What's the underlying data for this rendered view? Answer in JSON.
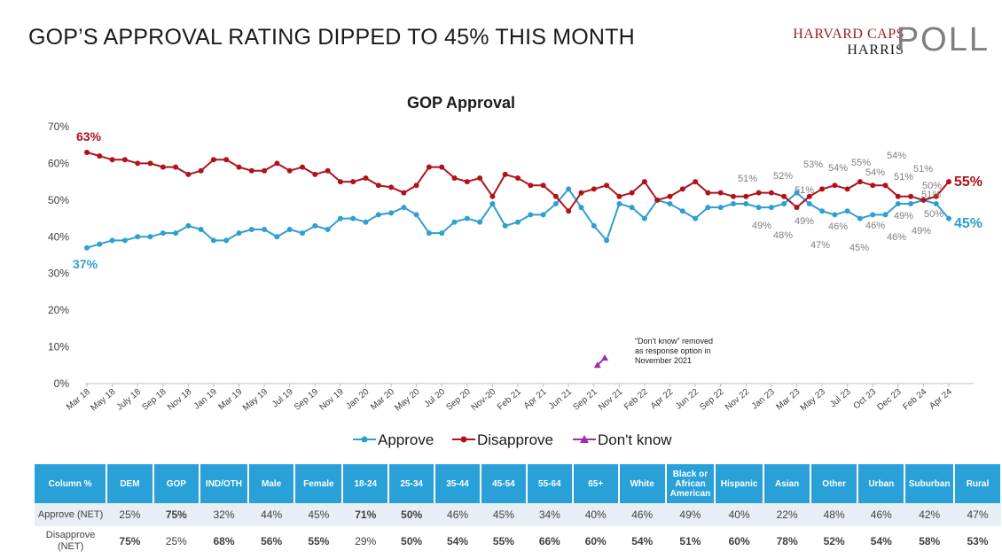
{
  "headline": "GOP’S APPROVAL RATING DIPPED TO 45% THIS MONTH",
  "logo": {
    "top": "HARVARD CAPS",
    "middle": "HARRIS",
    "poll": "POLL"
  },
  "chart_data": {
    "type": "line",
    "title": "GOP Approval",
    "ylim": [
      0,
      70
    ],
    "y_ticks": [
      "0%",
      "10%",
      "20%",
      "30%",
      "40%",
      "50%",
      "60%",
      "70%"
    ],
    "x_tick_labels": [
      "Mar 18",
      "May 18",
      "July 18",
      "Sep 18",
      "Nov 18",
      "Jan 19",
      "Mar 19",
      "May 19",
      "Jul 19",
      "Sep 19",
      "Nov 19",
      "Jan 20",
      "Mar 20",
      "May 20",
      "Jul 20",
      "Sep 20",
      "Nov-20",
      "Feb 21",
      "Apr 21",
      "Jun 21",
      "Sep 21",
      "Nov 21",
      "Feb 22",
      "Apr 22",
      "Jun 22",
      "Sep 22",
      "Nov 22",
      "Jan 23",
      "Mar 23",
      "May 23",
      "Jul 23",
      "Oct 23",
      "Dec 23",
      "Feb 24",
      "Apr 24"
    ],
    "grid": false,
    "legend_position": "bottom",
    "colors": {
      "approve": "#2e9fd1",
      "disapprove": "#b0121b",
      "dontknow": "#9b2fa8"
    },
    "series": [
      {
        "name": "Approve",
        "values": [
          37,
          38,
          39,
          39,
          40,
          40,
          41,
          41,
          43,
          42,
          39,
          39,
          41,
          42,
          42,
          40,
          42,
          41,
          43,
          42,
          45,
          45,
          44,
          46,
          46.5,
          48,
          46,
          41,
          41,
          44,
          45,
          44,
          49,
          43,
          44,
          46,
          46,
          49,
          53,
          48,
          43,
          39,
          49,
          48,
          45,
          50,
          49,
          47,
          45,
          48,
          48,
          49,
          49,
          48,
          48,
          49,
          52,
          49,
          47,
          46,
          47,
          45,
          46,
          46,
          49,
          49,
          50,
          49,
          45
        ]
      },
      {
        "name": "Disapprove",
        "values": [
          63,
          62,
          61,
          61,
          60,
          60,
          59,
          59,
          57,
          58,
          61,
          61,
          59,
          58,
          58,
          60,
          58,
          59,
          57,
          58,
          55,
          55,
          56,
          54,
          53.5,
          52,
          54,
          59,
          59,
          56,
          55,
          56,
          51,
          57,
          56,
          54,
          54,
          51,
          47,
          52,
          53,
          54,
          51,
          52,
          55,
          50,
          51,
          53,
          55,
          52,
          52,
          51,
          51,
          52,
          52,
          51,
          48,
          51,
          53,
          54,
          53,
          55,
          54,
          54,
          51,
          51,
          50,
          51,
          55
        ]
      },
      {
        "name": "Don't know",
        "values": [
          5,
          7
        ]
      }
    ],
    "callouts": {
      "approve_first": "37%",
      "disapprove_first": "63%",
      "approve_last": "45%",
      "disapprove_last": "55%",
      "recent_disapprove": [
        "51%",
        "52%",
        "51%",
        "53%",
        "54%",
        "55%",
        "54%",
        "54%",
        "51%",
        "51%",
        "50%",
        "51%"
      ],
      "recent_approve": [
        "49%",
        "48%",
        "49%",
        "47%",
        "46%",
        "45%",
        "46%",
        "46%",
        "49%",
        "49%",
        "50%"
      ]
    },
    "annotation": [
      "“Don’t know” removed",
      "as response option in",
      "November 2021"
    ]
  },
  "table": {
    "headers": [
      "Column %",
      "DEM",
      "GOP",
      "IND/OTH",
      "Male",
      "Female",
      "18-24",
      "25-34",
      "35-44",
      "45-54",
      "55-64",
      "65+",
      "White",
      "Black or African American",
      "Hispanic",
      "Asian",
      "Other",
      "Urban",
      "Suburban",
      "Rural"
    ],
    "rows": [
      {
        "label": "Approve (NET)",
        "values": [
          "25%",
          "75%",
          "32%",
          "44%",
          "45%",
          "71%",
          "50%",
          "46%",
          "45%",
          "34%",
          "40%",
          "46%",
          "49%",
          "40%",
          "22%",
          "48%",
          "46%",
          "42%",
          "47%"
        ],
        "bold": [
          false,
          true,
          false,
          false,
          false,
          true,
          true,
          false,
          false,
          false,
          false,
          false,
          false,
          false,
          false,
          false,
          false,
          false,
          false
        ]
      },
      {
        "label": "Disapprove (NET)",
        "values": [
          "75%",
          "25%",
          "68%",
          "56%",
          "55%",
          "29%",
          "50%",
          "54%",
          "55%",
          "66%",
          "60%",
          "54%",
          "51%",
          "60%",
          "78%",
          "52%",
          "54%",
          "58%",
          "53%"
        ],
        "bold": [
          true,
          false,
          true,
          true,
          true,
          false,
          true,
          true,
          true,
          true,
          true,
          true,
          true,
          true,
          true,
          true,
          true,
          true,
          true
        ]
      }
    ]
  }
}
